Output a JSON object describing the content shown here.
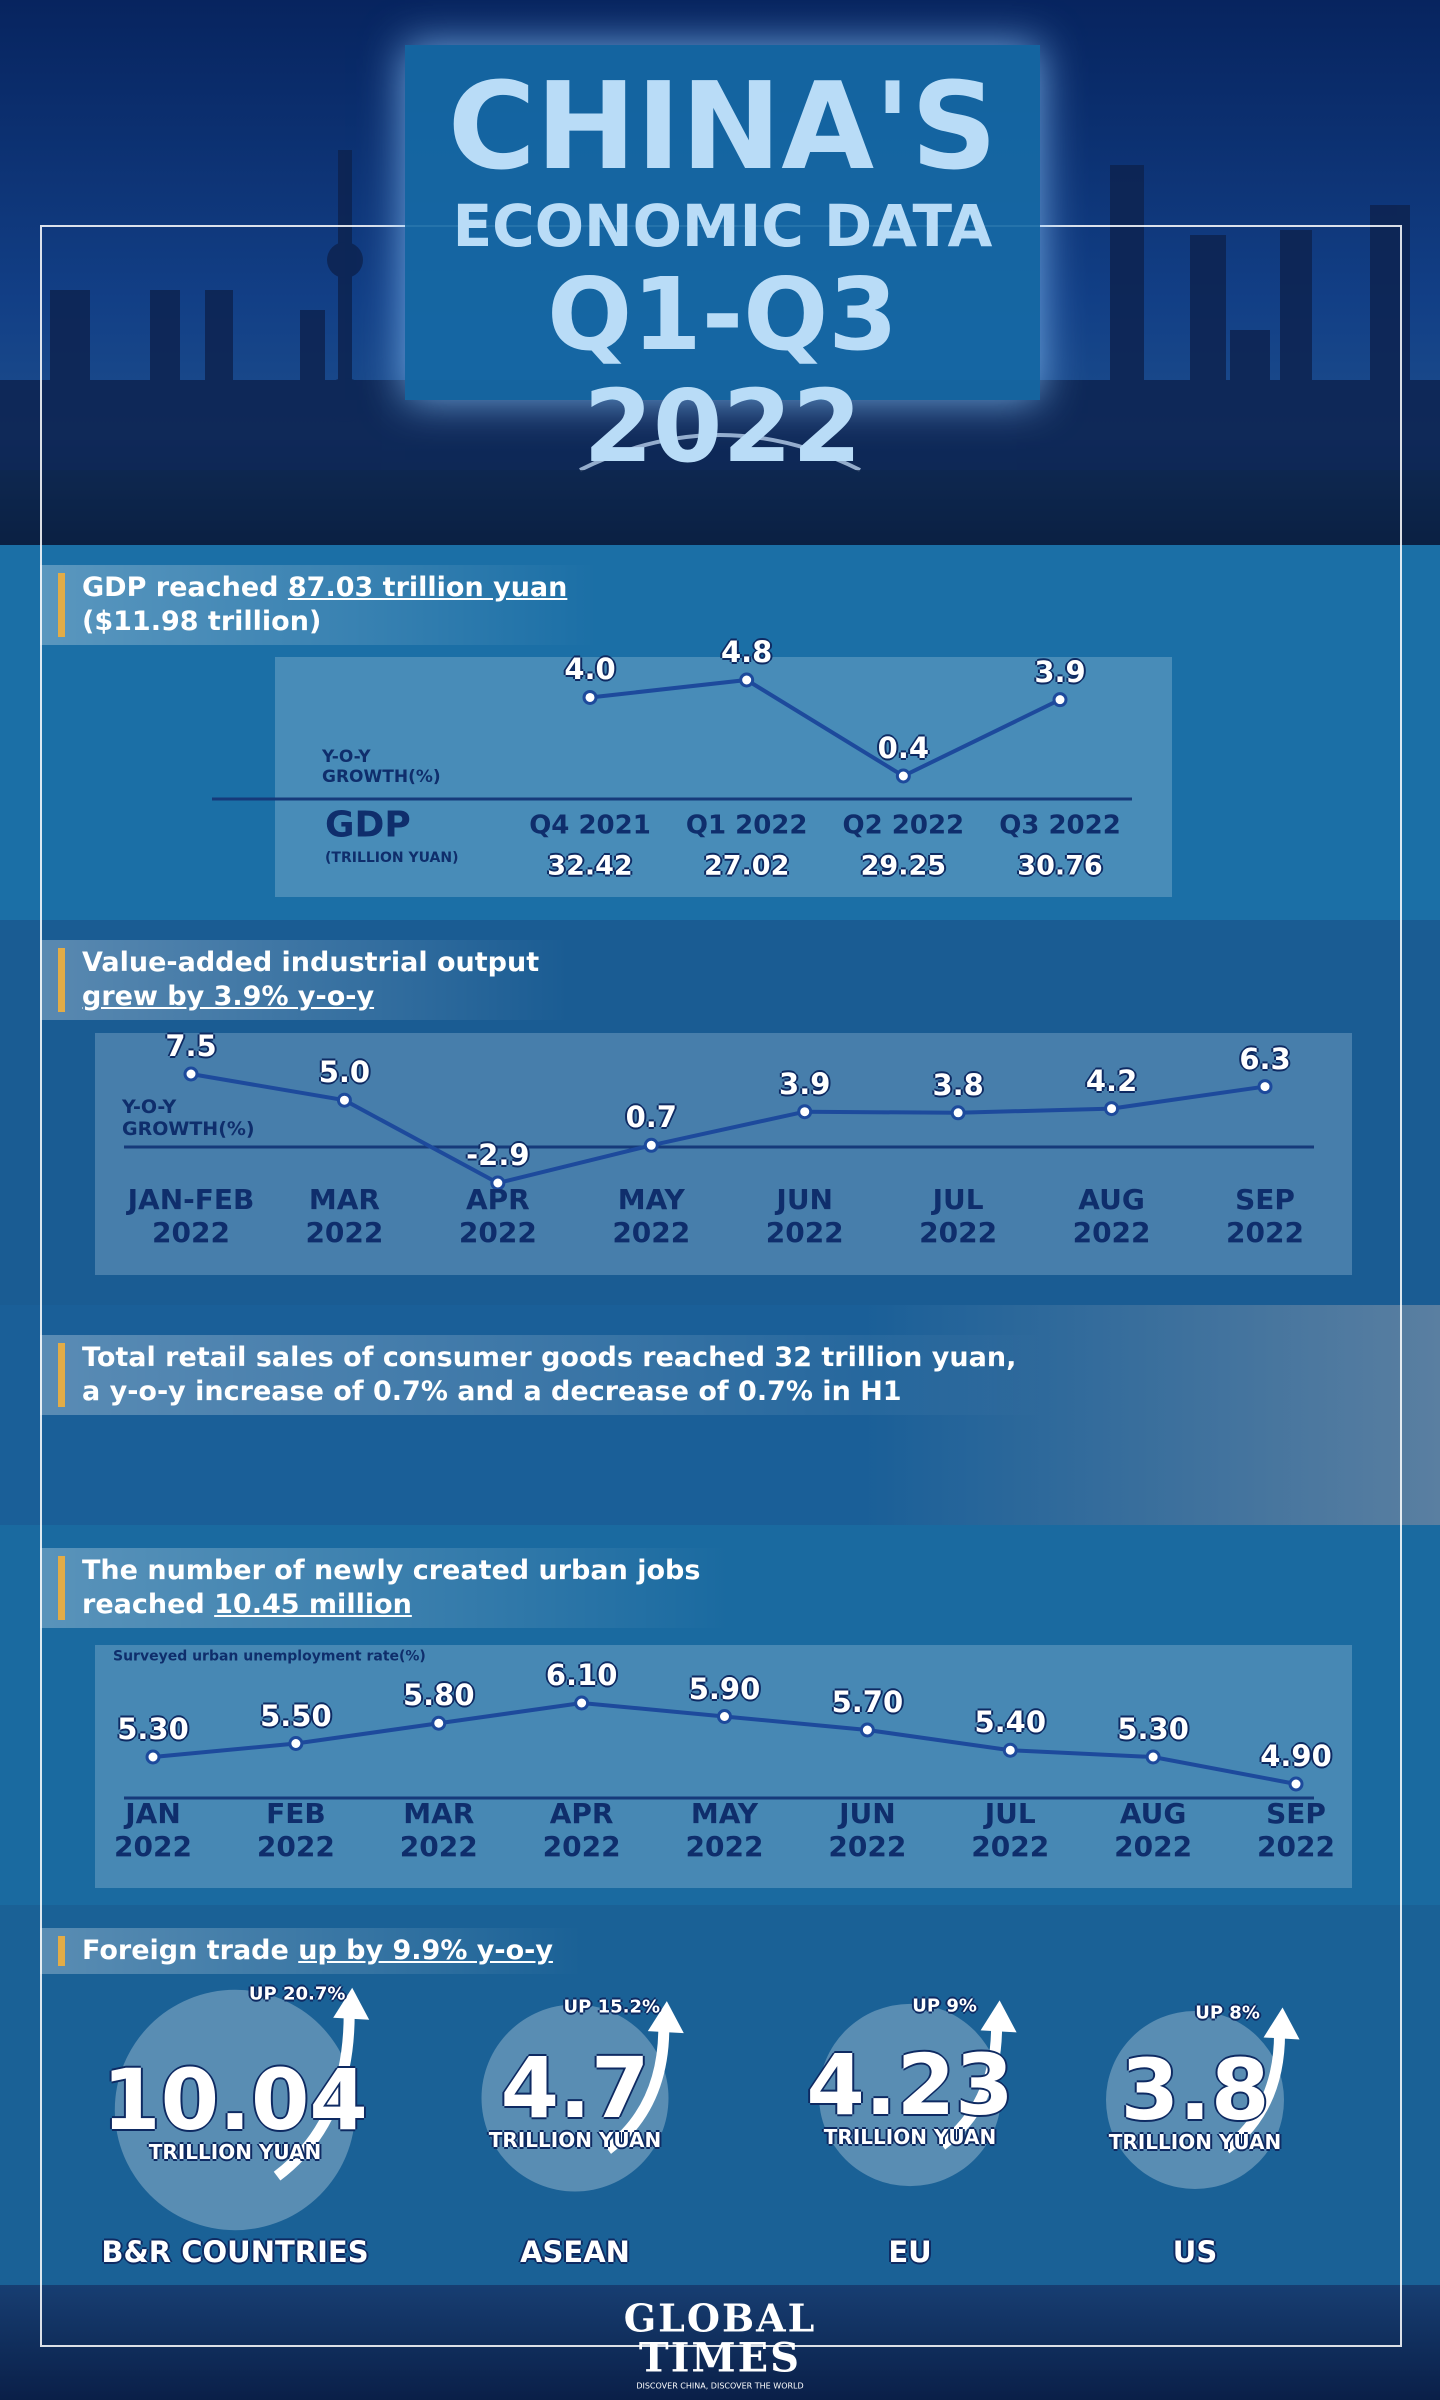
{
  "header": {
    "title_lines": [
      "CHINA'S",
      "ECONOMIC DATA",
      "Q1-Q3 2022"
    ]
  },
  "sections": [
    {
      "headline": [
        [
          {
            "text": "GDP reached "
          },
          {
            "text": "87.03 trillion yuan",
            "underline": true
          }
        ],
        [
          {
            "text": "($11.98 trillion)"
          }
        ]
      ]
    },
    {
      "headline": [
        [
          {
            "text": "Value-added industrial output"
          }
        ],
        [
          {
            "text": "grew by 3.9% y-o-y",
            "underline": true
          }
        ]
      ]
    },
    {
      "headline": [
        [
          {
            "text": "Total retail sales of consumer goods reached 32 trillion yuan,"
          }
        ],
        [
          {
            "text": "a y-o-y increase of 0.7% and a decrease of 0.7% in H1"
          }
        ]
      ]
    },
    {
      "headline": [
        [
          {
            "text": "The number of newly created urban jobs"
          }
        ],
        [
          {
            "text": "reached "
          },
          {
            "text": "10.45 million",
            "underline": true
          }
        ]
      ]
    },
    {
      "headline": [
        [
          {
            "text": "Foreign trade "
          },
          {
            "text": "up by 9.9% y-o-y",
            "underline": true
          }
        ]
      ]
    }
  ],
  "chart_data": [
    {
      "type": "line",
      "y_label": "Y-O-Y\nGROWTH(%)",
      "categories": [
        "Q4 2021",
        "Q1 2022",
        "Q2 2022",
        "Q3 2022"
      ],
      "series": [
        {
          "color": "#1d4a9c",
          "values": [
            4.0,
            4.8,
            0.4,
            3.9
          ],
          "value_labels": [
            "4.0",
            "4.8",
            "0.4",
            "3.9"
          ]
        }
      ],
      "table_label": "GDP",
      "table_unit": "(TRILLION YUAN)",
      "table_values": [
        32.42,
        27.02,
        29.25,
        30.76
      ]
    },
    {
      "type": "line",
      "y_label": "Y-O-Y\nGROWTH(%)",
      "categories": [
        "JAN-FEB\n2022",
        "MAR\n2022",
        "APR\n2022",
        "MAY\n2022",
        "JUN\n2022",
        "JUL\n2022",
        "AUG\n2022",
        "SEP\n2022"
      ],
      "series": [
        {
          "color": "#1d4a9c",
          "values": [
            7.5,
            5.0,
            -2.9,
            0.7,
            3.9,
            3.8,
            4.2,
            6.3
          ],
          "value_labels": [
            "7.5",
            "5.0",
            "-2.9",
            "0.7",
            "3.9",
            "3.8",
            "4.2",
            "6.3"
          ]
        }
      ]
    },
    {
      "type": "line",
      "y_label": "Surveyed urban unemployment rate(%)",
      "categories": [
        "JAN\n2022",
        "FEB\n2022",
        "MAR\n2022",
        "APR\n2022",
        "MAY\n2022",
        "JUN\n2022",
        "JUL\n2022",
        "AUG\n2022",
        "SEP\n2022"
      ],
      "series": [
        {
          "color": "#1d4a9c",
          "values": [
            5.3,
            5.5,
            5.8,
            6.1,
            5.9,
            5.7,
            5.4,
            5.3,
            4.9
          ],
          "value_labels": [
            "5.30",
            "5.50",
            "5.80",
            "6.10",
            "5.90",
            "5.70",
            "5.40",
            "5.30",
            "4.90"
          ]
        }
      ]
    }
  ],
  "trade": {
    "unit": "TRILLION YUAN",
    "items": [
      {
        "name": "B&R COUNTRIES",
        "value": 10.04,
        "growth": "UP 20.7%"
      },
      {
        "name": "ASEAN",
        "value": 4.7,
        "growth": "UP 15.2%"
      },
      {
        "name": "EU",
        "value": 4.23,
        "growth": "UP 9%"
      },
      {
        "name": "US",
        "value": 3.8,
        "growth": "UP 8%"
      }
    ]
  },
  "footer": {
    "logo_top": "GLOBAL",
    "logo_bottom": "TIMES",
    "tagline": "DISCOVER CHINA, DISCOVER THE WORLD"
  }
}
